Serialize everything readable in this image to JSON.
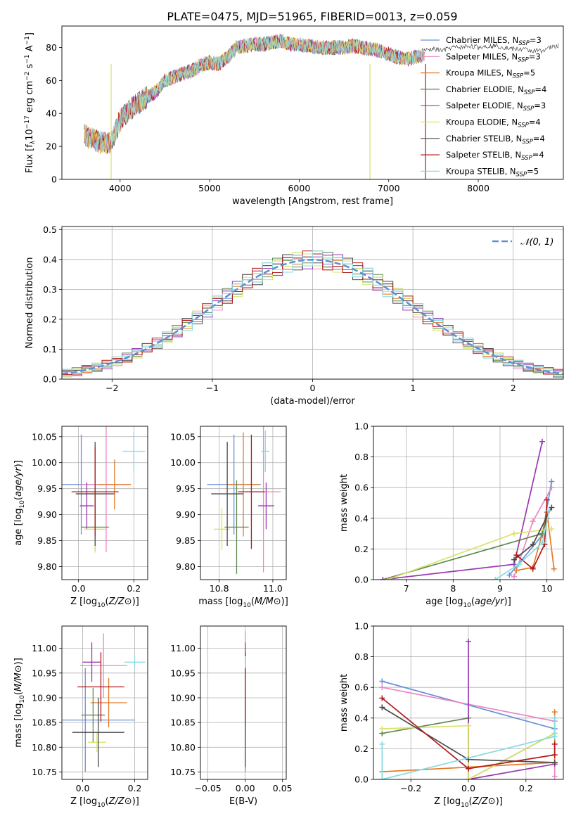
{
  "figure": {
    "title": "PLATE=0475, MJD=51965, FIBERID=0013, z=0.059"
  },
  "colors": [
    "#6a8fd8",
    "#e88ac2",
    "#e37b2a",
    "#5f8a4f",
    "#9a38b0",
    "#d8e26a",
    "#4a4a4a",
    "#b01a1a",
    "#86dbe3"
  ],
  "chart_data": [
    {
      "id": "spectrum",
      "type": "line",
      "xlabel": "wavelength [Angstrom, rest frame]",
      "ylabel": "Flux [f_λ 10^-17 erg cm^-2 s^-1 A^-1]",
      "xlim": [
        3350,
        8950
      ],
      "ylim": [
        0,
        93
      ],
      "xticks": [
        "4000",
        "5000",
        "6000",
        "7000",
        "8000"
      ],
      "yticks": [
        "0",
        "20",
        "40",
        "60",
        "80"
      ],
      "legend_position": "top-right",
      "legend": [
        {
          "main": "Chabrier MILES, N",
          "sub": "SSP",
          "tail": "=3"
        },
        {
          "main": "Salpeter MILES, N",
          "sub": "SSP",
          "tail": "=3"
        },
        {
          "main": "Kroupa MILES, N",
          "sub": "SSP",
          "tail": "=5"
        },
        {
          "main": "Chabrier ELODIE, N",
          "sub": "SSP",
          "tail": "=4"
        },
        {
          "main": "Salpeter ELODIE, N",
          "sub": "SSP",
          "tail": "=3"
        },
        {
          "main": "Kroupa ELODIE, N",
          "sub": "SSP",
          "tail": "=4"
        },
        {
          "main": "Chabrier STELIB, N",
          "sub": "SSP",
          "tail": "=4"
        },
        {
          "main": "Salpeter STELIB, N",
          "sub": "SSP",
          "tail": "=4"
        },
        {
          "main": "Kroupa STELIB, N",
          "sub": "SSP",
          "tail": "=5"
        }
      ],
      "continuum": {
        "x": [
          3600,
          3700,
          3800,
          3900,
          4000,
          4100,
          4200,
          4300,
          4400,
          4500,
          4600,
          4700,
          4800,
          4900,
          5000,
          5100,
          5200,
          5300,
          5400,
          5500,
          5600,
          5700,
          5800,
          5900,
          6000,
          6100,
          6200,
          6300,
          6400,
          6500,
          6600,
          6700,
          6800,
          6900,
          7000,
          7100,
          7200,
          7300,
          7400
        ],
        "y": [
          27,
          24,
          22,
          22,
          36,
          42,
          46,
          50,
          53,
          60,
          62,
          64,
          66,
          69,
          71,
          70,
          74,
          80,
          81,
          82,
          82,
          83,
          84,
          82,
          82,
          81,
          80,
          80,
          80,
          80,
          81,
          80,
          79,
          78,
          76,
          74,
          73,
          74,
          76
        ]
      },
      "model_tail": {
        "x": [
          7400,
          7500,
          7600,
          7700,
          7800,
          7900,
          8000,
          8100,
          8200,
          8300,
          8400,
          8500,
          8600,
          8700,
          8800,
          8900
        ],
        "y": [
          78,
          79,
          78,
          80,
          80,
          81,
          80,
          81,
          81,
          80,
          79,
          79,
          78,
          78,
          80,
          81
        ]
      },
      "dropouts": [
        {
          "x": 3900,
          "color_index": 5
        },
        {
          "x": 6790,
          "color_index": 5
        },
        {
          "x": 7410,
          "color_index": 7
        }
      ]
    },
    {
      "id": "residuals",
      "type": "step",
      "xlabel": "(data-model)/error",
      "ylabel": "Normed distribution",
      "xlim": [
        -2.5,
        2.5
      ],
      "ylim": [
        0,
        0.51
      ],
      "xticks": [
        "−2",
        "−1",
        "0",
        "1",
        "2"
      ],
      "yticks": [
        "0.0",
        "0.1",
        "0.2",
        "0.3",
        "0.4",
        "0.5"
      ],
      "bin_edges_start": -2.5,
      "bin_width": 0.1,
      "series_offsets": [
        [
          0.02,
          -0.02,
          0.03,
          0.01,
          -0.02,
          0.02,
          -0.01,
          0.03,
          -0.02,
          0.01
        ],
        [
          -0.01,
          0.02,
          -0.02,
          0.03,
          0.01,
          -0.03,
          0.02,
          -0.01,
          0.03,
          -0.02
        ],
        [
          0.03,
          0.01,
          -0.02,
          -0.01,
          0.02,
          0.03,
          -0.03,
          0.01,
          -0.02,
          0.02
        ],
        [
          -0.02,
          0.03,
          0.01,
          -0.02,
          -0.01,
          0.02,
          0.03,
          -0.02,
          0.01,
          -0.01
        ],
        [
          0.01,
          -0.03,
          0.02,
          0.02,
          -0.03,
          0.01,
          0.02,
          0.03,
          -0.01,
          0.02
        ],
        [
          -0.03,
          0.02,
          -0.01,
          0.03,
          0.02,
          -0.02,
          0.01,
          -0.03,
          0.02,
          0.01
        ],
        [
          0.02,
          0.01,
          0.03,
          -0.03,
          0.01,
          -0.01,
          -0.02,
          0.02,
          0.03,
          -0.03
        ],
        [
          -0.01,
          -0.02,
          0.02,
          0.01,
          0.03,
          0.02,
          -0.03,
          -0.01,
          -0.02,
          0.03
        ],
        [
          0.03,
          -0.01,
          -0.03,
          0.02,
          -0.02,
          0.03,
          0.01,
          0.02,
          0.01,
          -0.02
        ]
      ],
      "normal_curve": {
        "label": "𝒩(0, 1)",
        "mean": 0,
        "sigma": 1,
        "color": "#5b8fd6"
      }
    },
    {
      "id": "age-vs-Z",
      "type": "errorbar",
      "xlabel": "Z [log10(Z/Z⊙)]",
      "ylabel": "age  [log10(age/yr)]",
      "xlim": [
        -0.06,
        0.25
      ],
      "ylim": [
        9.775,
        10.07
      ],
      "xticks": [
        "0.0",
        "0.2"
      ],
      "yticks": [
        "9.80",
        "9.85",
        "9.90",
        "9.95",
        "10.00",
        "10.05"
      ],
      "points": [
        {
          "x": 0.01,
          "y": 9.958,
          "xerr": 0.12,
          "yerr": 0.096,
          "c": 0
        },
        {
          "x": 0.1,
          "y": 9.958,
          "xerr": 0.09,
          "yerr": 0.13,
          "c": 1
        },
        {
          "x": 0.13,
          "y": 9.958,
          "xerr": 0.06,
          "yerr": 0.048,
          "c": 2
        },
        {
          "x": 0.06,
          "y": 9.876,
          "xerr": 0.05,
          "yerr": 0.045,
          "c": 3
        },
        {
          "x": 0.03,
          "y": 9.917,
          "xerr": 0.025,
          "yerr": 0.045,
          "c": 4
        },
        {
          "x": 0.06,
          "y": 9.872,
          "xerr": 0.04,
          "yerr": 0.045,
          "c": 5
        },
        {
          "x": 0.06,
          "y": 9.94,
          "xerr": 0.07,
          "yerr": 0.1,
          "c": 6
        },
        {
          "x": 0.06,
          "y": 9.944,
          "xerr": 0.085,
          "yerr": 0.085,
          "c": 7
        },
        {
          "x": 0.2,
          "y": 10.022,
          "xerr": 0.04,
          "yerr": 0.037,
          "c": 8
        }
      ]
    },
    {
      "id": "age-vs-mass",
      "type": "errorbar",
      "xlabel": "mass [log10(M/M⊙)]",
      "ylabel": "",
      "xlim": [
        10.73,
        11.05
      ],
      "ylim": [
        9.775,
        10.07
      ],
      "xticks": [
        "10.8",
        "11.0"
      ],
      "yticks": [
        "9.80",
        "9.85",
        "9.90",
        "9.95",
        "10.00",
        "10.05"
      ],
      "points": [
        {
          "x": 10.855,
          "y": 9.958,
          "xerr": 0.1,
          "yerr": 0.096,
          "c": 0
        },
        {
          "x": 10.965,
          "y": 9.944,
          "xerr": 0.065,
          "yerr": 0.155,
          "c": 1
        },
        {
          "x": 10.89,
          "y": 9.958,
          "xerr": 0.06,
          "yerr": 0.1,
          "c": 2
        },
        {
          "x": 10.865,
          "y": 9.876,
          "xerr": 0.045,
          "yerr": 0.09,
          "c": 3
        },
        {
          "x": 10.975,
          "y": 9.917,
          "xerr": 0.03,
          "yerr": 0.045,
          "c": 4
        },
        {
          "x": 10.81,
          "y": 9.872,
          "xerr": 0.03,
          "yerr": 0.04,
          "c": 5
        },
        {
          "x": 10.83,
          "y": 9.94,
          "xerr": 0.06,
          "yerr": 0.1,
          "c": 6
        },
        {
          "x": 10.92,
          "y": 9.944,
          "xerr": 0.05,
          "yerr": 0.11,
          "c": 7
        },
        {
          "x": 10.972,
          "y": 10.022,
          "xerr": 0.015,
          "yerr": 0.04,
          "c": 8
        }
      ]
    },
    {
      "id": "massweight-vs-age",
      "type": "line",
      "xlabel": "age  [log10(age/yr)]",
      "ylabel": "mass weight",
      "xlim": [
        6.3,
        10.35
      ],
      "ylim": [
        0,
        1.0
      ],
      "xticks": [
        "7",
        "8",
        "9",
        "10"
      ],
      "yticks": [
        "0.0",
        "0.2",
        "0.4",
        "0.6",
        "0.8",
        "1.0"
      ],
      "series": [
        {
          "c": 0,
          "x": [
            9.2,
            9.9,
            10.1
          ],
          "y": [
            0.03,
            0.29,
            0.64
          ]
        },
        {
          "c": 1,
          "x": [
            9.3,
            9.7,
            10.1
          ],
          "y": [
            0.02,
            0.38,
            0.6
          ]
        },
        {
          "c": 2,
          "x": [
            9.35,
            9.7,
            9.9,
            10.0,
            10.15
          ],
          "y": [
            0.06,
            0.08,
            0.3,
            0.44,
            0.07
          ]
        },
        {
          "c": 3,
          "x": [
            6.5,
            9.9,
            10.0
          ],
          "y": [
            0.0,
            0.3,
            0.4
          ]
        },
        {
          "c": 4,
          "x": [
            6.5,
            9.3,
            9.9
          ],
          "y": [
            0.0,
            0.1,
            0.9
          ]
        },
        {
          "c": 5,
          "x": [
            6.6,
            9.3,
            10.1
          ],
          "y": [
            0.0,
            0.3,
            0.33
          ]
        },
        {
          "c": 6,
          "x": [
            9.3,
            9.7,
            10.1
          ],
          "y": [
            0.13,
            0.23,
            0.47
          ]
        },
        {
          "c": 7,
          "x": [
            9.35,
            9.7,
            9.95,
            10.0
          ],
          "y": [
            0.16,
            0.07,
            0.23,
            0.52
          ]
        },
        {
          "c": 8,
          "x": [
            8.9,
            9.4,
            9.9,
            10.05
          ],
          "y": [
            0.0,
            0.1,
            0.24,
            0.45
          ]
        }
      ]
    },
    {
      "id": "mass-vs-Z",
      "type": "errorbar",
      "xlabel": "Z [log10(Z/Z⊙)]",
      "ylabel": "mass [log10(M/M⊙)]",
      "xlim": [
        -0.08,
        0.25
      ],
      "ylim": [
        10.735,
        11.045
      ],
      "xticks": [
        "0.0",
        "0.2"
      ],
      "yticks": [
        "10.75",
        "10.80",
        "10.85",
        "10.90",
        "10.95",
        "11.00"
      ],
      "points": [
        {
          "x": 0.01,
          "y": 10.855,
          "xerr": 0.19,
          "yerr": 0.105,
          "c": 0
        },
        {
          "x": 0.08,
          "y": 10.965,
          "xerr": 0.09,
          "yerr": 0.065,
          "c": 1
        },
        {
          "x": 0.1,
          "y": 10.89,
          "xerr": 0.07,
          "yerr": 0.05,
          "c": 2
        },
        {
          "x": 0.04,
          "y": 10.865,
          "xerr": 0.045,
          "yerr": 0.055,
          "c": 3
        },
        {
          "x": 0.035,
          "y": 10.972,
          "xerr": 0.035,
          "yerr": 0.04,
          "c": 4
        },
        {
          "x": 0.055,
          "y": 10.81,
          "xerr": 0.035,
          "yerr": 0.02,
          "c": 5
        },
        {
          "x": 0.06,
          "y": 10.83,
          "xerr": 0.1,
          "yerr": 0.07,
          "c": 6
        },
        {
          "x": 0.07,
          "y": 10.922,
          "xerr": 0.09,
          "yerr": 0.07,
          "c": 7
        },
        {
          "x": 0.2,
          "y": 10.972,
          "xerr": 0.04,
          "yerr": 0.012,
          "c": 8
        }
      ]
    },
    {
      "id": "mass-vs-EBV",
      "type": "errorbar",
      "xlabel": "E(B-V)",
      "ylabel": "",
      "xlim": [
        -0.06,
        0.055
      ],
      "ylim": [
        10.735,
        11.045
      ],
      "xticks": [
        "−0.05",
        "0.00",
        "0.05"
      ],
      "yticks": [
        "10.75",
        "10.80",
        "10.85",
        "10.90",
        "10.95",
        "11.00"
      ],
      "points": [
        {
          "x": 0.0,
          "y": 10.855,
          "xerr": 0.0,
          "yerr": 0.105,
          "c": 0
        },
        {
          "x": 0.0,
          "y": 10.965,
          "xerr": 0.0,
          "yerr": 0.07,
          "c": 1
        },
        {
          "x": 0.0,
          "y": 10.89,
          "xerr": 0.0,
          "yerr": 0.05,
          "c": 2
        },
        {
          "x": 0.0,
          "y": 10.865,
          "xerr": 0.0,
          "yerr": 0.06,
          "c": 3
        },
        {
          "x": 0.0,
          "y": 10.972,
          "xerr": 0.0,
          "yerr": 0.04,
          "c": 4
        },
        {
          "x": 0.0,
          "y": 10.81,
          "xerr": 0.0,
          "yerr": 0.02,
          "c": 5
        },
        {
          "x": 0.0,
          "y": 10.83,
          "xerr": 0.0,
          "yerr": 0.07,
          "c": 6
        },
        {
          "x": 0.0,
          "y": 10.922,
          "xerr": 0.0,
          "yerr": 0.07,
          "c": 7
        },
        {
          "x": 0.0,
          "y": 10.972,
          "xerr": 0.0,
          "yerr": 0.012,
          "c": 8
        }
      ]
    },
    {
      "id": "massweight-vs-Z",
      "type": "line",
      "xlabel": "Z [log10(Z/Z⊙)]",
      "ylabel": "mass weight",
      "xlim": [
        -0.33,
        0.33
      ],
      "ylim": [
        0,
        1.0
      ],
      "xticks": [
        "−0.2",
        "0.0",
        "0.2"
      ],
      "yticks": [
        "0.0",
        "0.2",
        "0.4",
        "0.6",
        "0.8",
        "1.0"
      ],
      "series": [
        {
          "c": 0,
          "x": [
            -0.3,
            0.3
          ],
          "y": [
            0.64,
            0.33
          ]
        },
        {
          "c": 1,
          "x": [
            -0.3,
            0.3,
            0.3
          ],
          "y": [
            0.6,
            0.38,
            0.02
          ]
        },
        {
          "c": 2,
          "x": [
            -0.3,
            0.0,
            0.3,
            0.3
          ],
          "y": [
            0.05,
            0.08,
            0.11,
            0.44
          ]
        },
        {
          "c": 3,
          "x": [
            -0.3,
            0.0,
            0.0,
            0.3
          ],
          "y": [
            0.3,
            0.4,
            0.0,
            0.3
          ]
        },
        {
          "c": 4,
          "x": [
            0.0,
            0.0,
            0.3
          ],
          "y": [
            0.9,
            0.0,
            0.1
          ]
        },
        {
          "c": 5,
          "x": [
            -0.3,
            0.0,
            0.0,
            0.3
          ],
          "y": [
            0.33,
            0.35,
            0.0,
            0.3
          ]
        },
        {
          "c": 6,
          "x": [
            -0.3,
            0.0,
            0.3
          ],
          "y": [
            0.47,
            0.13,
            0.11
          ]
        },
        {
          "c": 7,
          "x": [
            -0.3,
            0.0,
            0.3,
            0.3
          ],
          "y": [
            0.53,
            0.07,
            0.16,
            0.23
          ]
        },
        {
          "c": 8,
          "x": [
            -0.3,
            -0.3,
            0.3,
            0.3
          ],
          "y": [
            0.23,
            0.0,
            0.28,
            0.4
          ]
        }
      ]
    }
  ]
}
